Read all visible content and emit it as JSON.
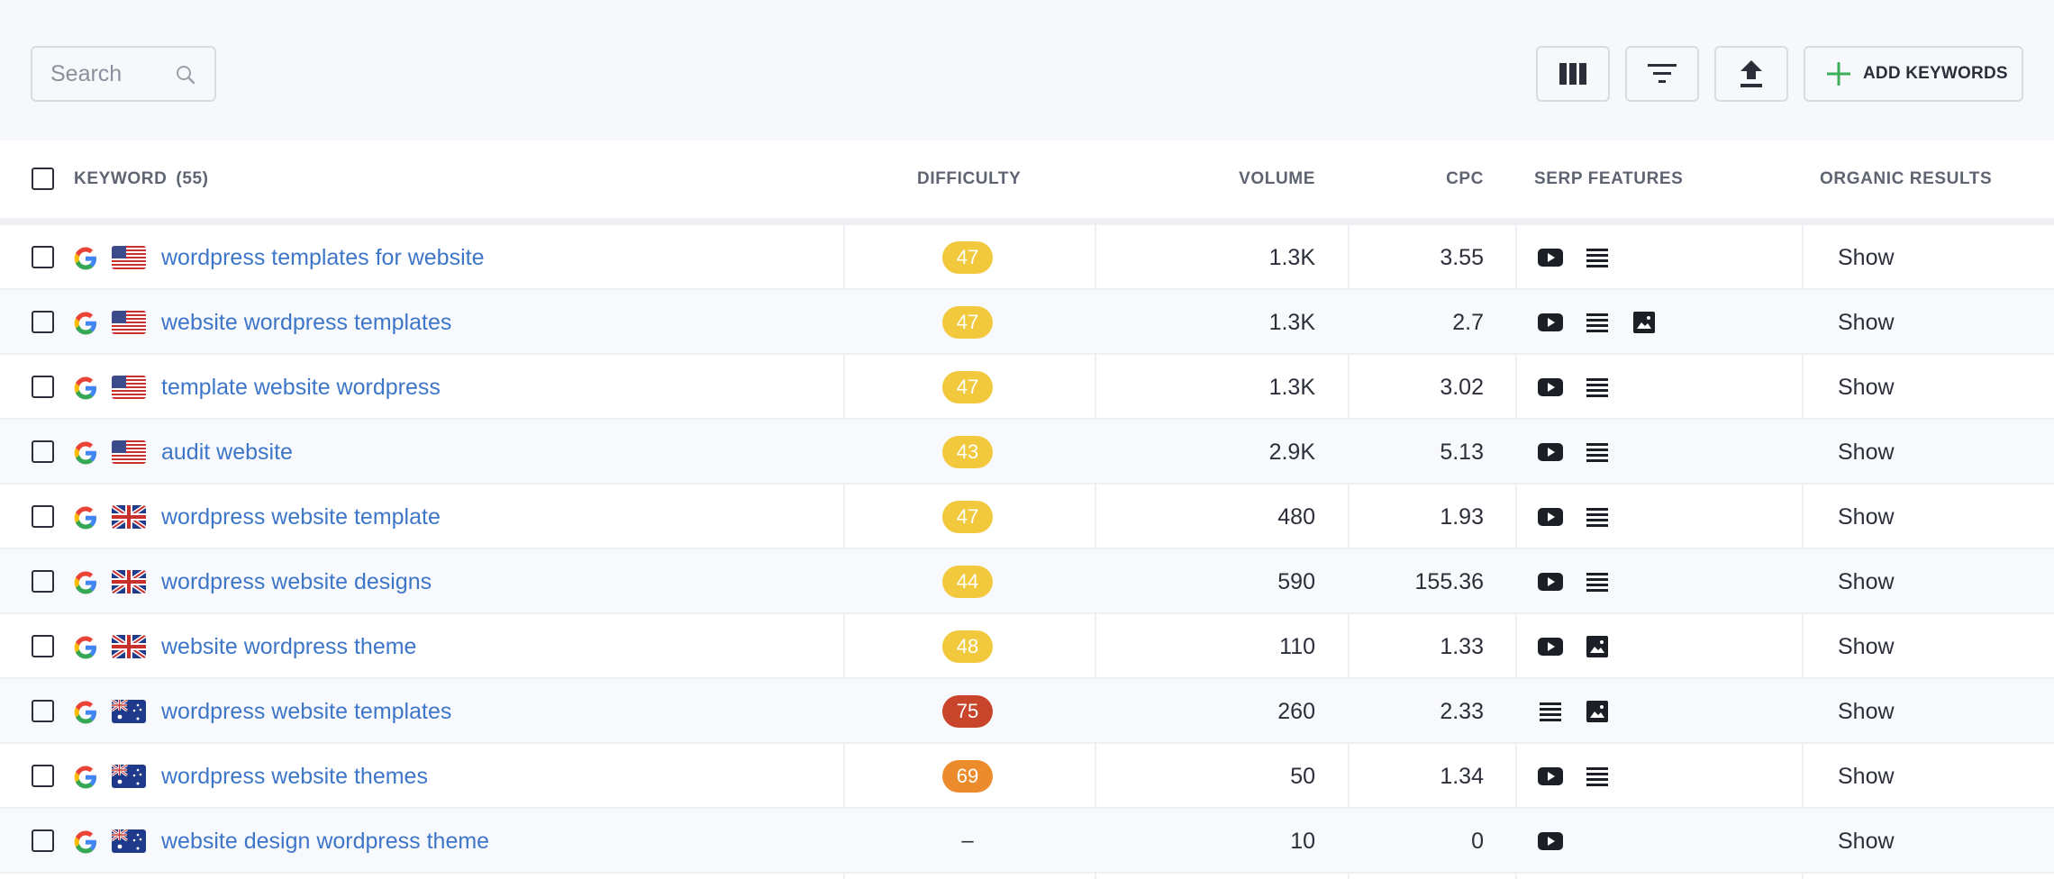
{
  "toolbar": {
    "search_placeholder": "Search",
    "add_keywords_label": "ADD KEYWORDS"
  },
  "colors": {
    "link": "#3d76c9",
    "difficulty_yellow": "#f2c93c",
    "difficulty_red": "#c8442a",
    "difficulty_orange": "#eb8b2c",
    "add_icon_green": "#3dae5a"
  },
  "table": {
    "headers": {
      "keyword": "KEYWORD",
      "keyword_count": "(55)",
      "difficulty": "DIFFICULTY",
      "volume": "VOLUME",
      "cpc": "CPC",
      "serp_features": "SERP FEATURES",
      "organic_results": "ORGANIC RESULTS"
    },
    "rows": [
      {
        "keyword": "wordpress templates for website",
        "engine": "google-icon",
        "country": "us-flag",
        "difficulty": "47",
        "difficulty_level": "yellow",
        "volume": "1.3K",
        "cpc": "3.55",
        "serp": [
          "video-icon",
          "list-icon"
        ],
        "organic": "Show"
      },
      {
        "keyword": "website wordpress templates",
        "engine": "google-icon",
        "country": "us-flag",
        "difficulty": "47",
        "difficulty_level": "yellow",
        "volume": "1.3K",
        "cpc": "2.7",
        "serp": [
          "video-icon",
          "list-icon",
          "image-icon"
        ],
        "organic": "Show"
      },
      {
        "keyword": "template website wordpress",
        "engine": "google-icon",
        "country": "us-flag",
        "difficulty": "47",
        "difficulty_level": "yellow",
        "volume": "1.3K",
        "cpc": "3.02",
        "serp": [
          "video-icon",
          "list-icon"
        ],
        "organic": "Show"
      },
      {
        "keyword": "audit website",
        "engine": "google-icon",
        "country": "us-flag",
        "difficulty": "43",
        "difficulty_level": "yellow",
        "volume": "2.9K",
        "cpc": "5.13",
        "serp": [
          "video-icon",
          "list-icon"
        ],
        "organic": "Show"
      },
      {
        "keyword": "wordpress website template",
        "engine": "google-icon",
        "country": "uk-flag",
        "difficulty": "47",
        "difficulty_level": "yellow",
        "volume": "480",
        "cpc": "1.93",
        "serp": [
          "video-icon",
          "list-icon"
        ],
        "organic": "Show"
      },
      {
        "keyword": "wordpress website designs",
        "engine": "google-icon",
        "country": "uk-flag",
        "difficulty": "44",
        "difficulty_level": "yellow",
        "volume": "590",
        "cpc": "155.36",
        "serp": [
          "video-icon",
          "list-icon"
        ],
        "organic": "Show"
      },
      {
        "keyword": "website wordpress theme",
        "engine": "google-icon",
        "country": "uk-flag",
        "difficulty": "48",
        "difficulty_level": "yellow",
        "volume": "110",
        "cpc": "1.33",
        "serp": [
          "video-icon",
          "image-icon"
        ],
        "organic": "Show"
      },
      {
        "keyword": "wordpress website templates",
        "engine": "google-icon",
        "country": "au-flag",
        "difficulty": "75",
        "difficulty_level": "red",
        "volume": "260",
        "cpc": "2.33",
        "serp": [
          "list-icon",
          "image-icon"
        ],
        "organic": "Show"
      },
      {
        "keyword": "wordpress website themes",
        "engine": "google-icon",
        "country": "au-flag",
        "difficulty": "69",
        "difficulty_level": "orange",
        "volume": "50",
        "cpc": "1.34",
        "serp": [
          "video-icon",
          "list-icon"
        ],
        "organic": "Show"
      },
      {
        "keyword": "website design wordpress theme",
        "engine": "google-icon",
        "country": "au-flag",
        "difficulty": "–",
        "difficulty_level": "none",
        "volume": "10",
        "cpc": "0",
        "serp": [
          "video-icon"
        ],
        "organic": "Show"
      }
    ]
  }
}
